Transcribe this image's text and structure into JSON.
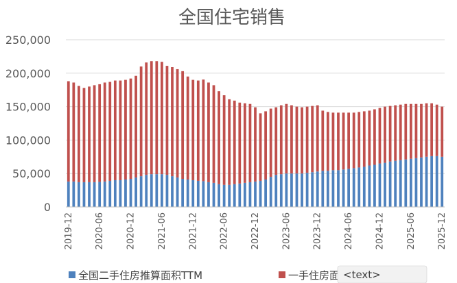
{
  "chart_data": {
    "type": "bar",
    "stacked": true,
    "title": "全国住宅销售",
    "xlabel": "",
    "ylabel": "",
    "ylim": [
      0,
      250000
    ],
    "yticks": [
      "0",
      "50,000",
      "100,000",
      "150,000",
      "200,000",
      "250,000"
    ],
    "ytick_values": [
      0,
      50000,
      100000,
      150000,
      200000,
      250000
    ],
    "grid": true,
    "legend_position": "bottom",
    "x_tick_labels": [
      "2019-12",
      "2020-06",
      "2020-12",
      "2021-06",
      "2021-12",
      "2022-06",
      "2022-12",
      "2023-06",
      "2023-12",
      "2024-06",
      "2024-12",
      "2025-06",
      "2025-12"
    ],
    "categories": [
      "2019-12",
      "2020-01",
      "2020-02",
      "2020-03",
      "2020-04",
      "2020-05",
      "2020-06",
      "2020-07",
      "2020-08",
      "2020-09",
      "2020-10",
      "2020-11",
      "2020-12",
      "2021-01",
      "2021-02",
      "2021-03",
      "2021-04",
      "2021-05",
      "2021-06",
      "2021-07",
      "2021-08",
      "2021-09",
      "2021-10",
      "2021-11",
      "2021-12",
      "2022-01",
      "2022-02",
      "2022-03",
      "2022-04",
      "2022-05",
      "2022-06",
      "2022-07",
      "2022-08",
      "2022-09",
      "2022-10",
      "2022-11",
      "2022-12",
      "2023-01",
      "2023-02",
      "2023-03",
      "2023-04",
      "2023-05",
      "2023-06",
      "2023-07",
      "2023-08",
      "2023-09",
      "2023-10",
      "2023-11",
      "2023-12",
      "2024-01",
      "2024-02",
      "2024-03",
      "2024-04",
      "2024-05",
      "2024-06",
      "2024-07",
      "2024-08",
      "2024-09",
      "2024-10",
      "2024-11",
      "2024-12",
      "2025-01",
      "2025-02",
      "2025-03",
      "2025-04",
      "2025-05",
      "2025-06",
      "2025-07",
      "2025-08",
      "2025-09",
      "2025-10",
      "2025-11",
      "2025-12"
    ],
    "series": [
      {
        "name": "全国二手住房推算面积TTM",
        "color": "#4e81bd",
        "values": [
          38000,
          38000,
          37000,
          37000,
          37000,
          37000,
          37500,
          38000,
          39000,
          40000,
          40000,
          41000,
          42000,
          44000,
          46000,
          48000,
          49000,
          49000,
          49000,
          48000,
          46000,
          44000,
          42000,
          41000,
          40000,
          39000,
          38500,
          37000,
          36000,
          34000,
          33000,
          33000,
          34000,
          35000,
          36000,
          37000,
          38000,
          39000,
          41000,
          45000,
          48000,
          49000,
          50000,
          50000,
          50000,
          50000,
          51000,
          52000,
          53000,
          54000,
          54000,
          55000,
          55000,
          56000,
          57000,
          58000,
          59000,
          60000,
          62000,
          63000,
          65000,
          66000,
          68000,
          69000,
          70000,
          71000,
          72000,
          73000,
          74000,
          75000,
          76000,
          76000,
          75000
        ]
      },
      {
        "name": "一手住房面积",
        "color": "#c0504d",
        "values": [
          150000,
          148000,
          144000,
          141000,
          143000,
          145000,
          146000,
          148000,
          148000,
          149000,
          149000,
          149000,
          150000,
          152000,
          164000,
          168000,
          169000,
          169000,
          168000,
          163000,
          163000,
          162000,
          161000,
          154000,
          150000,
          150000,
          152000,
          149000,
          146000,
          139000,
          134000,
          128000,
          125000,
          121000,
          119000,
          117000,
          111000,
          101000,
          102000,
          102000,
          101000,
          103000,
          104000,
          102000,
          100000,
          99000,
          99000,
          99000,
          99000,
          90000,
          88000,
          86000,
          86000,
          85000,
          84000,
          83000,
          83000,
          83000,
          82000,
          83000,
          83000,
          84000,
          83000,
          83000,
          83000,
          83000,
          82000,
          81000,
          80000,
          80000,
          79000,
          77000,
          75000
        ]
      }
    ]
  },
  "watermark_text": "<text>"
}
